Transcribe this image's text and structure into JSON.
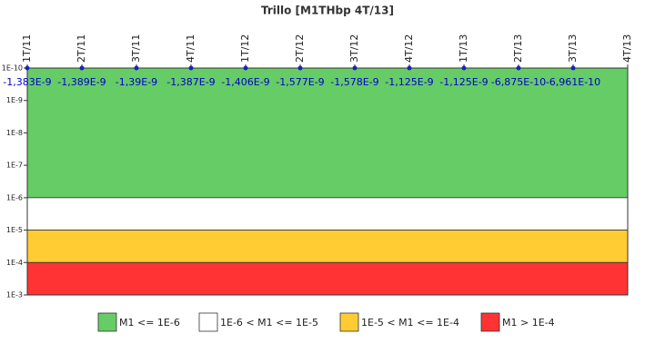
{
  "chart_data": {
    "type": "line",
    "title": "Trillo [M1THbp 4T/13]",
    "categories": [
      "1T/11",
      "2T/11",
      "3T/11",
      "4T/11",
      "1T/12",
      "2T/12",
      "3T/12",
      "4T/12",
      "1T/13",
      "2T/13",
      "3T/13",
      "4T/13"
    ],
    "series": [
      {
        "name": "M1",
        "color": "#1f1fbf",
        "values": [
          -1.383e-09,
          -1.389e-09,
          -1.39e-09,
          -1.387e-09,
          -1.406e-09,
          -1.577e-09,
          -1.578e-09,
          -1.125e-09,
          -1.125e-09,
          -6.875e-10,
          -6.961e-10,
          null
        ],
        "value_labels": [
          "-1,383E-9",
          "-1,389E-9",
          "-1,39E-9",
          "-1,387E-9",
          "-1,406E-9",
          "-1,577E-9",
          "-1,578E-9",
          "-1,125E-9",
          "-1,125E-9",
          "-6,875E-10",
          "-6,961E-10",
          null
        ]
      }
    ],
    "log_scale": true,
    "y_inverted": true,
    "ylim": [
      1e-10,
      0.001
    ],
    "yticks": [
      {
        "value": 1e-10,
        "label": "1E-10"
      },
      {
        "value": 1e-09,
        "label": "1E-9"
      },
      {
        "value": 1e-08,
        "label": "1E-8"
      },
      {
        "value": 1e-07,
        "label": "1E-7"
      },
      {
        "value": 1e-06,
        "label": "1E-6"
      },
      {
        "value": 1e-05,
        "label": "1E-5"
      },
      {
        "value": 0.0001,
        "label": "1E-4"
      },
      {
        "value": 0.001,
        "label": "1E-3"
      }
    ],
    "bands": [
      {
        "name": "M1 <= 1E-6",
        "color": "#66cc66",
        "from": 1e-10,
        "to": 1e-06
      },
      {
        "name": "1E-6 < M1 <= 1E-5",
        "color": "#ffffff",
        "from": 1e-06,
        "to": 1e-05
      },
      {
        "name": "1E-5 < M1 <= 1E-4",
        "color": "#ffcc33",
        "from": 1e-05,
        "to": 0.0001
      },
      {
        "name": "M1 > 1E-4",
        "color": "#ff3333",
        "from": 0.0001,
        "to": 0.001
      }
    ]
  }
}
